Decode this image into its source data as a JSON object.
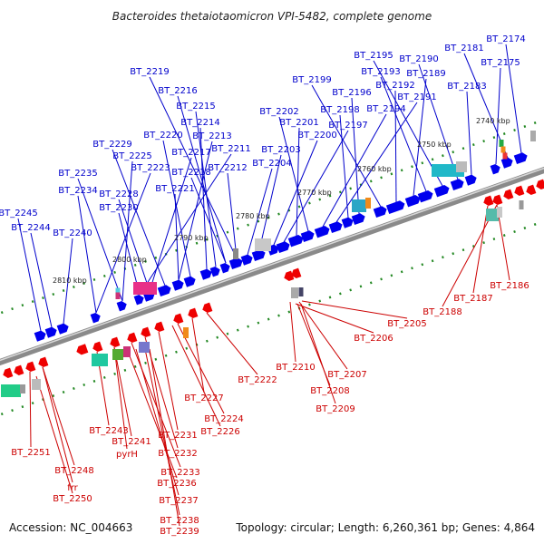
{
  "title": "Bacteroides thetaiotaomicron VPI-5482, complete genome",
  "footer": {
    "accession": "Accession: NC_004663",
    "summary": "Topology: circular; Length: 6,260,361 bp; Genes: 4,864"
  },
  "colors": {
    "plus_strand": "#0000ee",
    "minus_strand": "#ee0000",
    "plus_label": "#0000cc",
    "minus_label": "#cc0000",
    "backbone": "#888888",
    "tick": "#228822"
  },
  "ticks": [
    {
      "text": "2740 kbp",
      "kbp": 2740
    },
    {
      "text": "2750 kbp",
      "kbp": 2750
    },
    {
      "text": "2760 kbp",
      "kbp": 2760
    },
    {
      "text": "2770 kbp",
      "kbp": 2770
    },
    {
      "text": "2780 kbp",
      "kbp": 2780
    },
    {
      "text": "2790 kbp",
      "kbp": 2790
    },
    {
      "text": "2800 kbp",
      "kbp": 2800
    },
    {
      "text": "2810 kbp",
      "kbp": 2810
    }
  ],
  "blue_labels": [
    "BT_2174",
    "BT_2181",
    "BT_2175",
    "BT_2190",
    "BT_2195",
    "BT_2193",
    "BT_2189",
    "BT_2192",
    "BT_2183",
    "BT_2199",
    "BT_2196",
    "BT_2191",
    "BT_2198",
    "BT_2194",
    "BT_2202",
    "BT_2201",
    "BT_2197",
    "BT_2200",
    "BT_2203",
    "BT_2204",
    "BT_2219",
    "BT_2216",
    "BT_2215",
    "BT_2214",
    "BT_2220",
    "BT_2213",
    "BT_2229",
    "BT_2217",
    "BT_2211",
    "BT_2225",
    "BT_2223",
    "BT_2218",
    "BT_2212",
    "BT_2235",
    "BT_2221",
    "BT_2234",
    "BT_2228",
    "BT_2230",
    "BT_2245",
    "BT_2244",
    "BT_2240"
  ],
  "red_labels": [
    "BT_2186",
    "BT_2187",
    "BT_2188",
    "BT_2205",
    "BT_2206",
    "BT_2210",
    "BT_2207",
    "BT_2222",
    "BT_2208",
    "BT_2209",
    "BT_2227",
    "BT_2224",
    "BT_2226",
    "BT_2243",
    "BT_2231",
    "BT_2241",
    "pyrH",
    "BT_2232",
    "BT_2251",
    "BT_2248",
    "BT_2233",
    "BT_2236",
    "frr",
    "BT_2250",
    "BT_2237",
    "BT_2238",
    "BT_2239"
  ]
}
